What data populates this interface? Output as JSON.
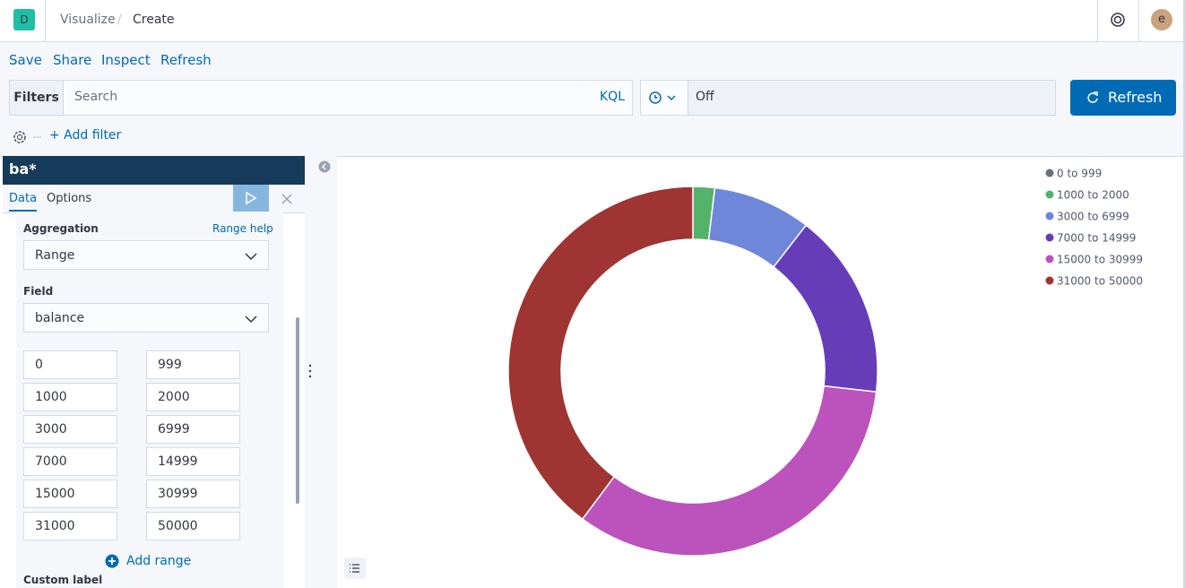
{
  "header": {
    "logo": "D",
    "breadcrumbs": [
      "Visualize",
      "Create"
    ],
    "avatar": "e"
  },
  "menu": [
    "Save",
    "Share",
    "Inspect",
    "Refresh"
  ],
  "query": {
    "filters_label": "Filters",
    "placeholder": "Search",
    "language": "KQL",
    "refresh_interval": "Off",
    "refresh_button": "Refresh"
  },
  "filter_bar": {
    "add_filter": "+ Add filter"
  },
  "sidebar": {
    "index_pattern": "ba*",
    "tabs": [
      "Data",
      "Options"
    ],
    "aggregation_label": "Aggregation",
    "aggregation_help": "Range help",
    "aggregation_value": "Range",
    "field_label": "Field",
    "field_value": "balance",
    "ranges": [
      [
        "0",
        "999"
      ],
      [
        "1000",
        "2000"
      ],
      [
        "3000",
        "6999"
      ],
      [
        "7000",
        "14999"
      ],
      [
        "15000",
        "30999"
      ],
      [
        "31000",
        "50000"
      ]
    ],
    "add_range": "Add range",
    "custom_label": "Custom label"
  },
  "chart_data": {
    "type": "pie",
    "donut": true,
    "categories": [
      "0 to 999",
      "1000 to 2000",
      "3000 to 6999",
      "7000 to 14999",
      "15000 to 30999",
      "31000 to 50000"
    ],
    "values": [
      0,
      1.9,
      8.6,
      16.3,
      33.4,
      39.8
    ],
    "colors": [
      "#6a717d",
      "#54b36a",
      "#6f87d8",
      "#663db8",
      "#bc52bc",
      "#9e3533"
    ]
  }
}
